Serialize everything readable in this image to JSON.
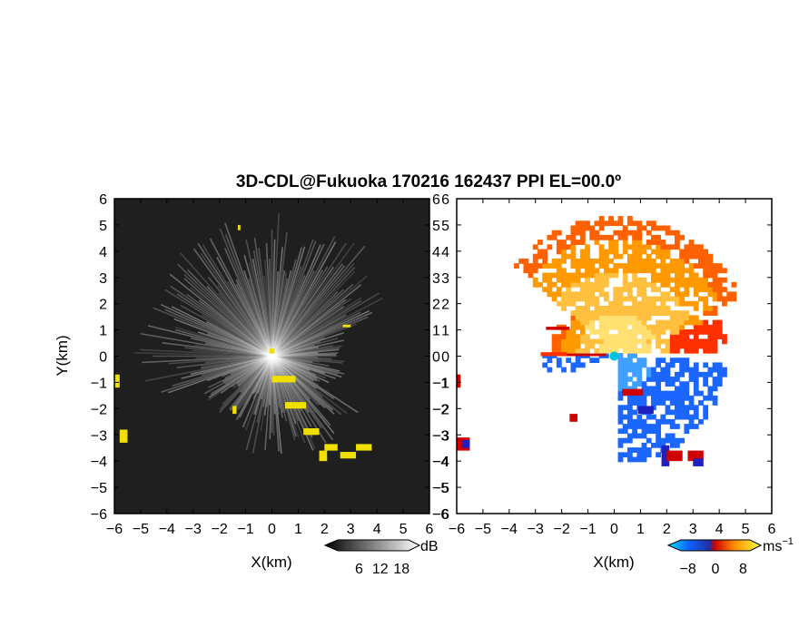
{
  "title": "3D-CDL@Fukuoka 170216 162437 PPI EL=00.0º",
  "chart_data": [
    {
      "type": "heatmap",
      "panel": "left",
      "xlabel": "X(km)",
      "ylabel": "Y(km)",
      "xlim": [
        -6,
        6
      ],
      "ylim": [
        -6,
        6
      ],
      "xticks": [
        -6,
        -5,
        -4,
        -3,
        -2,
        -1,
        0,
        1,
        2,
        3,
        4,
        5,
        6
      ],
      "yticks": [
        -6,
        -5,
        -4,
        -3,
        -2,
        -1,
        0,
        1,
        2,
        3,
        4,
        5,
        6
      ],
      "colorbar": {
        "unit": "dB",
        "ticks": [
          6,
          12,
          18
        ]
      },
      "colors": {
        "background": "#1f1f1f",
        "highlight": "#f0e000",
        "echo": "#ffffff"
      }
    },
    {
      "type": "heatmap",
      "panel": "right",
      "xlabel": "X(km)",
      "xlim": [
        -6,
        6
      ],
      "ylim": [
        -6,
        6
      ],
      "xticks": [
        -6,
        -5,
        -4,
        -3,
        -2,
        -1,
        0,
        1,
        2,
        3,
        4,
        5,
        6
      ],
      "yticks": [
        -6,
        -5,
        -4,
        -3,
        -2,
        -1,
        0,
        1,
        2,
        3,
        4,
        5,
        6
      ],
      "colorbar": {
        "unit": "ms",
        "unit_exp": "−1",
        "ticks": [
          -8,
          0,
          8
        ]
      },
      "colors": {
        "negative": "#1a66ff",
        "near_zero": "#00c0e0",
        "positive": "#ff9900",
        "extreme_pos": "#ff2000",
        "extreme_neg": "#2020c0"
      }
    }
  ]
}
